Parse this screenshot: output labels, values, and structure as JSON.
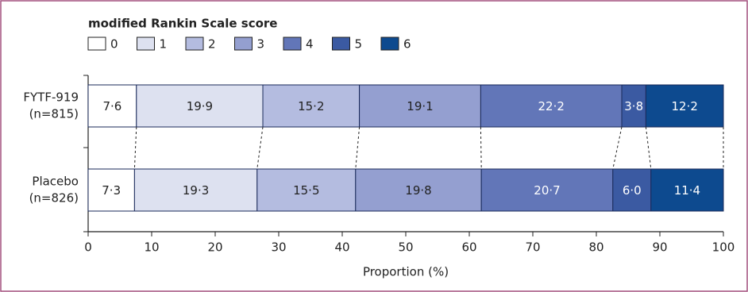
{
  "chart_data": {
    "type": "stacked-bar-horizontal",
    "legend_title": "modified Rankin Scale score",
    "categories": [
      [
        "FYTF-919",
        "(n=815)"
      ],
      [
        "Placebo",
        "(n=826)"
      ]
    ],
    "series": [
      {
        "name": "0",
        "color": "#ffffff",
        "values": [
          7.6,
          7.3
        ],
        "value_labels": [
          "7·6",
          "7·3"
        ]
      },
      {
        "name": "1",
        "color": "#dde1f0",
        "values": [
          19.9,
          19.3
        ],
        "value_labels": [
          "19·9",
          "19·3"
        ]
      },
      {
        "name": "2",
        "color": "#b4bce0",
        "values": [
          15.2,
          15.5
        ],
        "value_labels": [
          "15·2",
          "15·5"
        ]
      },
      {
        "name": "3",
        "color": "#949fd0",
        "values": [
          19.1,
          19.8
        ],
        "value_labels": [
          "19·1",
          "19·8"
        ]
      },
      {
        "name": "4",
        "color": "#6276b8",
        "values": [
          22.2,
          20.7
        ],
        "value_labels": [
          "22·2",
          "20·7"
        ]
      },
      {
        "name": "5",
        "color": "#3b5aa2",
        "values": [
          3.8,
          6.0
        ],
        "value_labels": [
          "3·8",
          "6·0"
        ]
      },
      {
        "name": "6",
        "color": "#0d4a8f",
        "values": [
          12.2,
          11.4
        ],
        "value_labels": [
          "12·2",
          "11·4"
        ]
      }
    ],
    "xlim": [
      0,
      100
    ],
    "xticks": [
      0,
      10,
      20,
      30,
      40,
      50,
      60,
      70,
      80,
      90,
      100
    ],
    "xlabel": "Proportion (%)"
  }
}
